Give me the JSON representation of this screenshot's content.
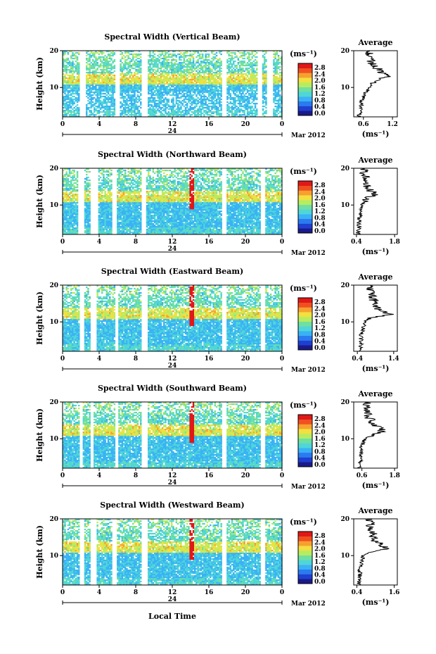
{
  "figure": {
    "colorbar_unit": "(ms⁻¹)",
    "colorbar_ticks": [
      "0.0",
      "0.4",
      "0.8",
      "1.2",
      "1.6",
      "2.0",
      "2.4",
      "2.8"
    ],
    "colorbar_colors": [
      "#1a1a8a",
      "#1f3fd0",
      "#2a7af0",
      "#3ab2f5",
      "#4fd6d8",
      "#70e0a0",
      "#b8ec60",
      "#f2e040",
      "#f7a030",
      "#f05020",
      "#e01818"
    ],
    "x_ticks": [
      "0",
      "4",
      "8",
      "12",
      "16",
      "20",
      "0"
    ],
    "y_ticks": [
      "20",
      "10"
    ],
    "y_label": "Height (km)",
    "date_mid": "24",
    "date_right": "Mar 2012",
    "x_label": "Local Time",
    "avg_title": "Average",
    "avg_unit": "(ms⁻¹)"
  },
  "chart_data": [
    {
      "type": "heatmap",
      "title": "Spectral Width (Vertical Beam)",
      "ylabel": "Height (km)",
      "x_range_hours": [
        0,
        24
      ],
      "y_range_km": [
        2,
        20
      ],
      "zlim": [
        0.0,
        3.0
      ],
      "data_gaps_hours": [
        [
          1.7,
          2.4
        ],
        [
          2.9,
          3.0
        ],
        [
          5.7,
          6.1
        ],
        [
          8.6,
          9.2
        ],
        [
          17.4,
          17.9
        ],
        [
          21.2,
          21.7
        ],
        [
          22.3,
          22.9
        ]
      ],
      "average_profile": {
        "title": "Average",
        "xlabel": "(ms⁻¹)",
        "xticks": [
          "0.6",
          "1.2"
        ],
        "xlim": [
          0.4,
          1.3
        ],
        "peak_height_km": 13,
        "heights_km": [
          2,
          4,
          6,
          8,
          10,
          12,
          13,
          14,
          16,
          18,
          20
        ],
        "values": [
          0.5,
          0.55,
          0.55,
          0.62,
          0.72,
          0.85,
          1.18,
          1.0,
          0.8,
          0.72,
          0.7
        ]
      }
    },
    {
      "type": "heatmap",
      "title": "Spectral Width (Northward Beam)",
      "ylabel": "Height (km)",
      "x_range_hours": [
        0,
        24
      ],
      "y_range_km": [
        2,
        20
      ],
      "zlim": [
        0.0,
        3.0
      ],
      "data_gaps_hours": [
        [
          1.6,
          2.3
        ],
        [
          3.0,
          3.8
        ],
        [
          5.4,
          5.9
        ],
        [
          8.5,
          9.1
        ],
        [
          17.4,
          17.8
        ],
        [
          21.5,
          22.0
        ]
      ],
      "average_profile": {
        "title": "Average",
        "xlabel": "(ms⁻¹)",
        "xticks": [
          "0.4",
          "1.8"
        ],
        "xlim": [
          0.3,
          1.9
        ],
        "peak_height_km": 13,
        "heights_km": [
          2,
          4,
          6,
          8,
          10,
          12,
          13,
          14,
          16,
          18,
          20
        ],
        "values": [
          0.45,
          0.5,
          0.5,
          0.55,
          0.6,
          0.85,
          1.15,
          0.9,
          0.75,
          0.7,
          0.65
        ]
      }
    },
    {
      "type": "heatmap",
      "title": "Spectral Width (Eastward Beam)",
      "ylabel": "Height (km)",
      "x_range_hours": [
        0,
        24
      ],
      "y_range_km": [
        2,
        20
      ],
      "zlim": [
        0.0,
        3.0
      ],
      "data_gaps_hours": [
        [
          1.7,
          2.3
        ],
        [
          3.0,
          3.6
        ],
        [
          5.6,
          6.0
        ],
        [
          8.6,
          9.2
        ],
        [
          17.4,
          17.9
        ],
        [
          21.5,
          22.0
        ]
      ],
      "average_profile": {
        "title": "Average",
        "xlabel": "(ms⁻¹)",
        "xticks": [
          "0.4",
          "1.4"
        ],
        "xlim": [
          0.3,
          1.5
        ],
        "peak_height_km": 12,
        "heights_km": [
          2,
          4,
          6,
          8,
          10,
          11,
          12,
          13,
          14,
          16,
          18,
          20
        ],
        "values": [
          0.45,
          0.5,
          0.5,
          0.55,
          0.6,
          0.75,
          1.3,
          1.1,
          0.9,
          0.85,
          0.8,
          0.75
        ]
      }
    },
    {
      "type": "heatmap",
      "title": "Spectral Width (Southward Beam)",
      "ylabel": "Height (km)",
      "x_range_hours": [
        0,
        24
      ],
      "y_range_km": [
        2,
        20
      ],
      "zlim": [
        0.0,
        3.0
      ],
      "data_gaps_hours": [
        [
          1.7,
          2.2
        ],
        [
          3.0,
          3.3
        ],
        [
          5.6,
          6.0
        ],
        [
          8.6,
          9.2
        ],
        [
          17.4,
          17.9
        ],
        [
          21.6,
          22.0
        ]
      ],
      "average_profile": {
        "title": "Average",
        "xlabel": "(ms⁻¹)",
        "xticks": [
          "0.6",
          "1.8"
        ],
        "xlim": [
          0.3,
          1.9
        ],
        "peak_height_km": 12,
        "heights_km": [
          2,
          4,
          6,
          8,
          10,
          12,
          13,
          14,
          16,
          18,
          20
        ],
        "values": [
          0.5,
          0.55,
          0.55,
          0.6,
          0.7,
          1.4,
          1.2,
          1.0,
          0.85,
          0.8,
          0.75
        ]
      }
    },
    {
      "type": "heatmap",
      "title": "Spectral Width (Westward Beam)",
      "ylabel": "Height (km)",
      "x_range_hours": [
        0,
        24
      ],
      "y_range_km": [
        2,
        20
      ],
      "zlim": [
        0.0,
        3.0
      ],
      "data_gaps_hours": [
        [
          1.7,
          2.3
        ],
        [
          3.0,
          3.6
        ],
        [
          5.4,
          5.9
        ],
        [
          8.6,
          9.2
        ],
        [
          17.4,
          17.9
        ],
        [
          21.5,
          22.0
        ]
      ],
      "average_profile": {
        "title": "Average",
        "xlabel": "(ms⁻¹)",
        "xticks": [
          "0.4",
          "1.6"
        ],
        "xlim": [
          0.3,
          1.7
        ],
        "peak_height_km": 12,
        "heights_km": [
          2,
          4,
          6,
          8,
          10,
          11,
          12,
          13,
          14,
          16,
          18,
          20
        ],
        "values": [
          0.45,
          0.5,
          0.5,
          0.55,
          0.6,
          0.8,
          1.4,
          1.15,
          1.0,
          0.9,
          0.85,
          0.8
        ]
      }
    }
  ]
}
